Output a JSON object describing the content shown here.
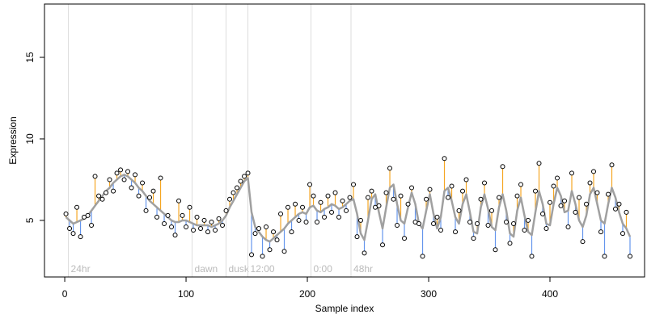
{
  "chart_data": {
    "type": "scatter",
    "x_label": "Sample index",
    "y_label": "Expression",
    "xlim": [
      -16.7,
      478
    ],
    "ylim": [
      1.53,
      18.27
    ],
    "xticks": [
      0,
      100,
      200,
      300,
      400
    ],
    "yticks": [
      5,
      10,
      15
    ],
    "point_color": "#000000",
    "residual_colors": {
      "above": "#f5a623",
      "below": "#6495ed"
    },
    "annotation_color": "#dddddd",
    "annotations": [
      {
        "x": 3,
        "label": "24hr"
      },
      {
        "x": 105,
        "label": "dawn"
      },
      {
        "x": 133,
        "label": "dusk"
      },
      {
        "x": 151,
        "label": "12:00"
      },
      {
        "x": 203,
        "label": "0:00"
      },
      {
        "x": 236,
        "label": "48hr"
      }
    ],
    "x": [
      1,
      4,
      7,
      10,
      13,
      16,
      19,
      22,
      25,
      28,
      31,
      34,
      37,
      40,
      43,
      46,
      49,
      52,
      55,
      58,
      61,
      64,
      67,
      70,
      73,
      76,
      79,
      82,
      85,
      88,
      91,
      94,
      97,
      100,
      103,
      106,
      109,
      112,
      115,
      118,
      121,
      124,
      127,
      130,
      133,
      136,
      139,
      142,
      145,
      148,
      151,
      154,
      157,
      160,
      163,
      166,
      169,
      172,
      175,
      178,
      181,
      184,
      187,
      190,
      193,
      196,
      199,
      202,
      205,
      208,
      211,
      214,
      217,
      220,
      223,
      226,
      229,
      232,
      235,
      238,
      241,
      244,
      247,
      250,
      253,
      256,
      259,
      262,
      265,
      268,
      271,
      274,
      277,
      280,
      283,
      286,
      289,
      292,
      295,
      298,
      301,
      304,
      307,
      310,
      313,
      316,
      319,
      322,
      325,
      328,
      331,
      334,
      337,
      340,
      343,
      346,
      349,
      352,
      355,
      358,
      361,
      364,
      367,
      370,
      373,
      376,
      379,
      382,
      385,
      388,
      391,
      394,
      397,
      400,
      403,
      406,
      409,
      412,
      415,
      418,
      421,
      424,
      427,
      430,
      433,
      436,
      439,
      442,
      445,
      448,
      451,
      454,
      457,
      460,
      463,
      466
    ],
    "values": [
      5.4,
      4.5,
      4.2,
      5.8,
      4.0,
      5.2,
      5.3,
      4.7,
      7.7,
      6.5,
      6.3,
      6.7,
      7.5,
      6.8,
      7.9,
      8.1,
      7.5,
      8.0,
      7.0,
      7.8,
      6.5,
      7.3,
      5.6,
      6.4,
      6.8,
      5.2,
      7.6,
      4.8,
      5.3,
      4.6,
      4.1,
      6.2,
      5.3,
      4.6,
      5.8,
      4.4,
      5.2,
      4.5,
      5.0,
      4.3,
      4.9,
      4.4,
      5.1,
      4.7,
      5.6,
      6.3,
      6.7,
      7.0,
      7.4,
      7.7,
      7.9,
      2.9,
      4.2,
      4.5,
      2.8,
      4.6,
      3.2,
      4.3,
      3.8,
      5.4,
      3.1,
      5.8,
      4.3,
      6.0,
      5.0,
      5.8,
      4.9,
      7.2,
      6.5,
      4.9,
      6.1,
      5.2,
      6.5,
      5.5,
      6.7,
      5.2,
      6.2,
      5.6,
      6.4,
      7.2,
      4.0,
      5.0,
      3.0,
      6.4,
      6.8,
      5.8,
      5.9,
      3.5,
      6.7,
      8.2,
      6.3,
      4.7,
      6.5,
      3.9,
      6.0,
      7.0,
      4.9,
      4.8,
      2.8,
      6.3,
      6.9,
      4.8,
      5.2,
      4.4,
      8.8,
      6.4,
      7.1,
      4.3,
      5.6,
      6.8,
      7.5,
      4.9,
      3.9,
      4.8,
      6.3,
      7.3,
      4.7,
      5.6,
      3.2,
      6.4,
      8.3,
      4.9,
      3.6,
      4.8,
      6.5,
      7.2,
      4.4,
      5.0,
      2.8,
      6.8,
      8.5,
      5.4,
      4.5,
      6.1,
      7.1,
      7.6,
      5.9,
      6.2,
      4.6,
      7.9,
      5.5,
      6.4,
      3.7,
      6.0,
      7.3,
      8.0,
      6.7,
      4.3,
      2.8,
      6.6,
      8.4,
      5.7,
      6.0,
      4.2,
      5.5,
      2.8
    ],
    "fit": {
      "color": "#a0a0a0",
      "values": [
        5.2,
        5.0,
        4.8,
        4.9,
        5.0,
        5.1,
        5.3,
        5.6,
        5.9,
        6.2,
        6.5,
        6.8,
        7.0,
        7.3,
        7.5,
        7.7,
        7.8,
        7.7,
        7.5,
        7.3,
        7.0,
        6.8,
        6.5,
        6.2,
        6.0,
        5.8,
        5.6,
        5.4,
        5.2,
        5.0,
        4.9,
        4.9,
        5.0,
        5.0,
        4.9,
        4.8,
        4.7,
        4.7,
        4.7,
        4.7,
        4.6,
        4.7,
        4.8,
        5.0,
        5.3,
        5.8,
        6.2,
        6.6,
        7.0,
        7.4,
        7.6,
        5.5,
        4.6,
        4.3,
        4.0,
        3.8,
        3.7,
        3.9,
        4.1,
        4.3,
        4.5,
        4.8,
        5.0,
        5.2,
        5.4,
        5.5,
        5.4,
        5.8,
        5.9,
        5.6,
        5.5,
        5.7,
        5.8,
        6.0,
        5.9,
        5.7,
        5.8,
        6.0,
        6.2,
        6.3,
        5.4,
        4.2,
        3.8,
        5.0,
        6.3,
        6.6,
        5.5,
        4.5,
        5.8,
        7.0,
        7.2,
        6.0,
        5.0,
        4.8,
        5.8,
        6.7,
        6.0,
        4.8,
        4.5,
        5.6,
        6.6,
        5.4,
        4.5,
        5.2,
        6.8,
        7.0,
        6.2,
        5.2,
        4.8,
        6.0,
        6.6,
        5.5,
        4.3,
        4.2,
        5.8,
        6.6,
        5.7,
        4.6,
        4.4,
        5.8,
        6.6,
        5.6,
        4.2,
        4.0,
        5.6,
        6.4,
        5.3,
        4.3,
        4.1,
        5.5,
        6.8,
        6.0,
        4.8,
        4.7,
        6.0,
        7.0,
        6.5,
        5.5,
        5.6,
        6.8,
        6.0,
        5.0,
        4.6,
        5.3,
        6.6,
        7.0,
        6.0,
        5.0,
        4.8,
        6.0,
        7.0,
        6.4,
        5.5,
        4.8,
        4.5,
        4.0
      ]
    }
  }
}
